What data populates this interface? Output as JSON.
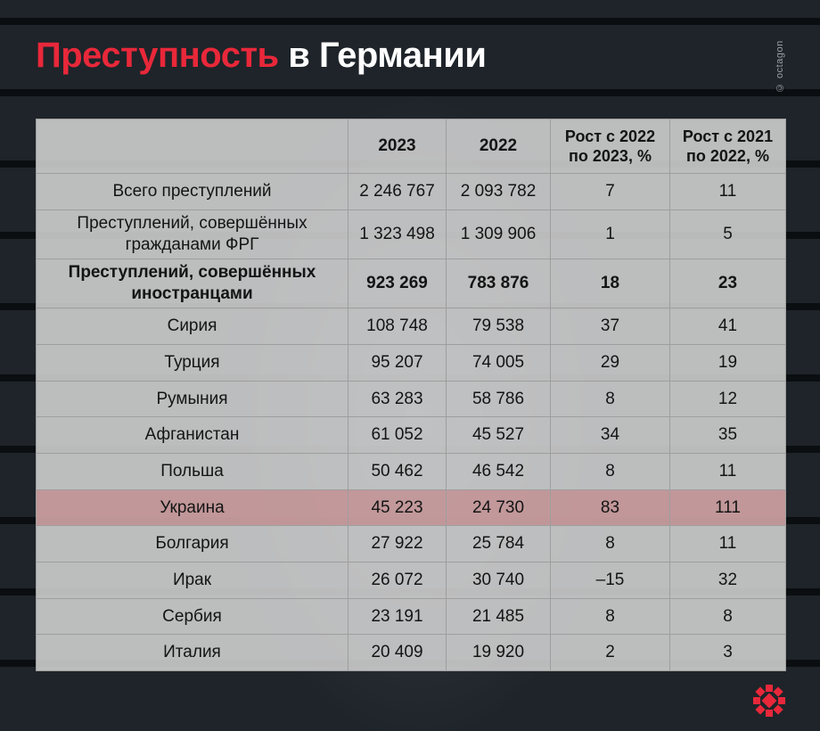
{
  "title": {
    "highlight": "Преступность",
    "rest": " в Германии"
  },
  "watermark": "© octagon",
  "table": {
    "headers": [
      "",
      "2023",
      "2022",
      "Рост с 2022 по 2023, %",
      "Рост с 2021 по 2022, %"
    ],
    "rows": [
      {
        "name": "Всего преступлений",
        "y2023": "2 246 767",
        "y2022": "2 093 782",
        "growth_22_23": "7",
        "growth_21_22": "11"
      },
      {
        "name": "Преступлений, совершённых гражданами ФРГ",
        "y2023": "1 323 498",
        "y2022": "1 309 906",
        "growth_22_23": "1",
        "growth_21_22": "5"
      },
      {
        "name": "Преступлений, совершённых иностранцами",
        "y2023": "923 269",
        "y2022": "783 876",
        "growth_22_23": "18",
        "growth_21_22": "23"
      },
      {
        "name": "Сирия",
        "y2023": "108 748",
        "y2022": "79 538",
        "growth_22_23": "37",
        "growth_21_22": "41"
      },
      {
        "name": "Турция",
        "y2023": "95 207",
        "y2022": "74 005",
        "growth_22_23": "29",
        "growth_21_22": "19"
      },
      {
        "name": "Румыния",
        "y2023": "63 283",
        "y2022": "58 786",
        "growth_22_23": "8",
        "growth_21_22": "12"
      },
      {
        "name": "Афганистан",
        "y2023": "61 052",
        "y2022": "45 527",
        "growth_22_23": "34",
        "growth_21_22": "35"
      },
      {
        "name": "Польша",
        "y2023": "50 462",
        "y2022": "46 542",
        "growth_22_23": "8",
        "growth_21_22": "11"
      },
      {
        "name": "Украина",
        "y2023": "45 223",
        "y2022": "24 730",
        "growth_22_23": "83",
        "growth_21_22": "111"
      },
      {
        "name": "Болгария",
        "y2023": "27 922",
        "y2022": "25 784",
        "growth_22_23": "8",
        "growth_21_22": "11"
      },
      {
        "name": "Ирак",
        "y2023": "26 072",
        "y2022": "30 740",
        "growth_22_23": "–15",
        "growth_21_22": "32"
      },
      {
        "name": "Сербия",
        "y2023": "23 191",
        "y2022": "21 485",
        "growth_22_23": "8",
        "growth_21_22": "8"
      },
      {
        "name": "Италия",
        "y2023": "20 409",
        "y2022": "19 920",
        "growth_22_23": "2",
        "growth_21_22": "3"
      }
    ]
  },
  "colors": {
    "accent": "#e8283a",
    "highlight_row": "#c4787c",
    "panel": "#d6d6d6"
  },
  "icons": {
    "logo": "octagon-logo-icon"
  }
}
